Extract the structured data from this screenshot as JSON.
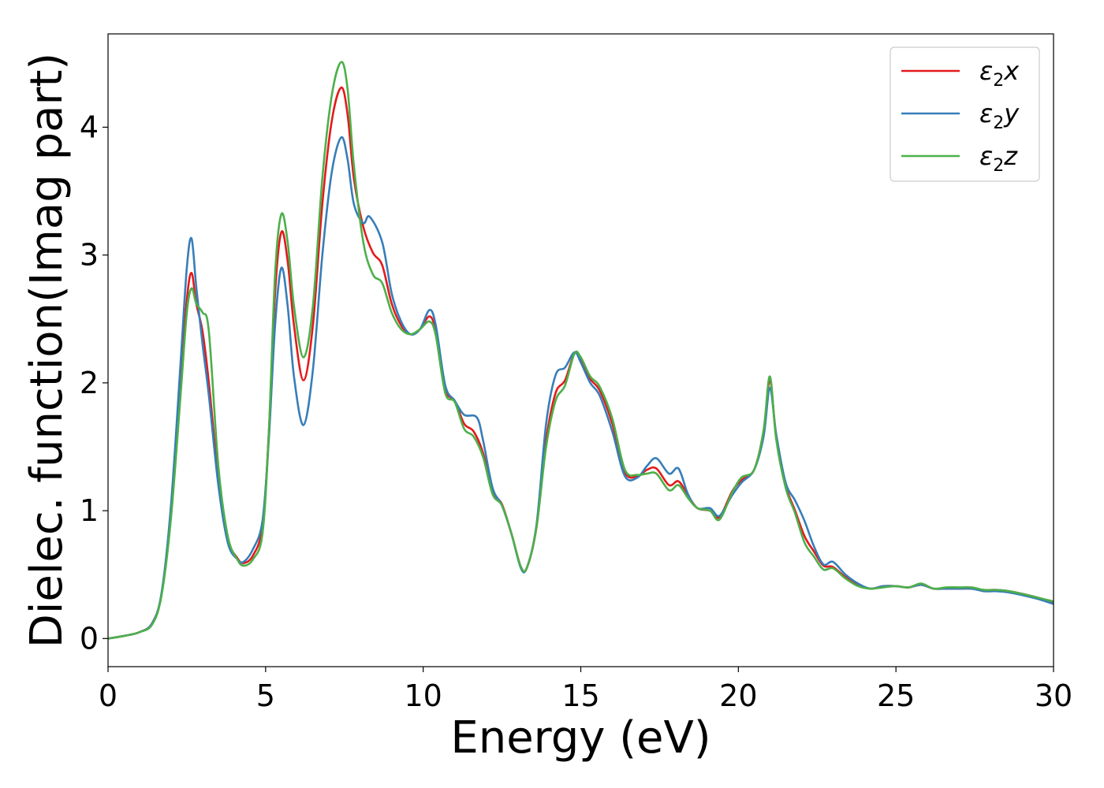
{
  "chart_data": {
    "type": "line",
    "xlabel": "Energy (eV)",
    "ylabel": "Dielec. function(Imag part)",
    "xlim": [
      0,
      30
    ],
    "ylim": [
      -0.22,
      4.73
    ],
    "xticks": [
      0,
      5,
      10,
      15,
      20,
      25,
      30
    ],
    "yticks": [
      0,
      1,
      2,
      3,
      4
    ],
    "grid": false,
    "legend_position": "top-right",
    "series": [
      {
        "name": "ε₂x",
        "legend": {
          "base": "ε",
          "sub": "2",
          "suffix": "x"
        },
        "color": "#e41a1c",
        "points": [
          [
            0,
            0
          ],
          [
            0.5,
            0.02
          ],
          [
            1.0,
            0.05
          ],
          [
            1.4,
            0.12
          ],
          [
            1.7,
            0.35
          ],
          [
            2.0,
            1.0
          ],
          [
            2.3,
            2.0
          ],
          [
            2.5,
            2.65
          ],
          [
            2.65,
            2.86
          ],
          [
            2.8,
            2.62
          ],
          [
            3.0,
            2.4
          ],
          [
            3.2,
            2.0
          ],
          [
            3.5,
            1.25
          ],
          [
            3.8,
            0.78
          ],
          [
            4.1,
            0.63
          ],
          [
            4.3,
            0.59
          ],
          [
            4.6,
            0.65
          ],
          [
            4.9,
            0.88
          ],
          [
            5.1,
            1.6
          ],
          [
            5.3,
            2.7
          ],
          [
            5.5,
            3.18
          ],
          [
            5.7,
            2.95
          ],
          [
            5.9,
            2.45
          ],
          [
            6.2,
            2.02
          ],
          [
            6.5,
            2.45
          ],
          [
            6.8,
            3.4
          ],
          [
            7.1,
            4.05
          ],
          [
            7.4,
            4.31
          ],
          [
            7.6,
            4.1
          ],
          [
            7.8,
            3.6
          ],
          [
            8.1,
            3.22
          ],
          [
            8.4,
            3.02
          ],
          [
            8.7,
            2.92
          ],
          [
            9.0,
            2.62
          ],
          [
            9.3,
            2.45
          ],
          [
            9.6,
            2.38
          ],
          [
            9.9,
            2.42
          ],
          [
            10.2,
            2.52
          ],
          [
            10.4,
            2.4
          ],
          [
            10.7,
            1.95
          ],
          [
            11.0,
            1.86
          ],
          [
            11.3,
            1.68
          ],
          [
            11.6,
            1.62
          ],
          [
            11.9,
            1.45
          ],
          [
            12.2,
            1.15
          ],
          [
            12.5,
            1.05
          ],
          [
            12.8,
            0.82
          ],
          [
            13.1,
            0.56
          ],
          [
            13.3,
            0.56
          ],
          [
            13.6,
            0.88
          ],
          [
            13.9,
            1.55
          ],
          [
            14.2,
            1.92
          ],
          [
            14.5,
            2.02
          ],
          [
            14.8,
            2.23
          ],
          [
            15.0,
            2.18
          ],
          [
            15.3,
            2.03
          ],
          [
            15.6,
            1.94
          ],
          [
            16.0,
            1.68
          ],
          [
            16.4,
            1.3
          ],
          [
            16.8,
            1.27
          ],
          [
            17.1,
            1.32
          ],
          [
            17.4,
            1.33
          ],
          [
            17.8,
            1.2
          ],
          [
            18.1,
            1.23
          ],
          [
            18.4,
            1.12
          ],
          [
            18.7,
            1.02
          ],
          [
            19.1,
            1.0
          ],
          [
            19.4,
            0.95
          ],
          [
            19.8,
            1.15
          ],
          [
            20.1,
            1.24
          ],
          [
            20.5,
            1.32
          ],
          [
            20.8,
            1.62
          ],
          [
            21.0,
            2.02
          ],
          [
            21.2,
            1.58
          ],
          [
            21.5,
            1.2
          ],
          [
            21.8,
            1.0
          ],
          [
            22.1,
            0.8
          ],
          [
            22.4,
            0.68
          ],
          [
            22.7,
            0.57
          ],
          [
            23.0,
            0.56
          ],
          [
            23.4,
            0.48
          ],
          [
            23.8,
            0.42
          ],
          [
            24.2,
            0.39
          ],
          [
            24.6,
            0.41
          ],
          [
            25.0,
            0.41
          ],
          [
            25.4,
            0.4
          ],
          [
            25.8,
            0.42
          ],
          [
            26.2,
            0.39
          ],
          [
            26.6,
            0.39
          ],
          [
            27.0,
            0.39
          ],
          [
            27.4,
            0.39
          ],
          [
            27.8,
            0.38
          ],
          [
            28.2,
            0.38
          ],
          [
            28.6,
            0.37
          ],
          [
            29.0,
            0.35
          ],
          [
            29.5,
            0.32
          ],
          [
            30,
            0.28
          ]
        ]
      },
      {
        "name": "ε₂y",
        "legend": {
          "base": "ε",
          "sub": "2",
          "suffix": "y"
        },
        "color": "#377eb8",
        "points": [
          [
            0,
            0
          ],
          [
            0.5,
            0.02
          ],
          [
            1.0,
            0.05
          ],
          [
            1.4,
            0.12
          ],
          [
            1.7,
            0.36
          ],
          [
            2.0,
            1.05
          ],
          [
            2.3,
            2.15
          ],
          [
            2.5,
            2.9
          ],
          [
            2.65,
            3.13
          ],
          [
            2.8,
            2.75
          ],
          [
            3.0,
            2.3
          ],
          [
            3.2,
            1.9
          ],
          [
            3.5,
            1.2
          ],
          [
            3.8,
            0.75
          ],
          [
            4.1,
            0.62
          ],
          [
            4.3,
            0.6
          ],
          [
            4.6,
            0.7
          ],
          [
            4.9,
            0.92
          ],
          [
            5.1,
            1.55
          ],
          [
            5.3,
            2.45
          ],
          [
            5.5,
            2.9
          ],
          [
            5.7,
            2.6
          ],
          [
            5.9,
            2.05
          ],
          [
            6.2,
            1.67
          ],
          [
            6.5,
            2.1
          ],
          [
            6.8,
            3.0
          ],
          [
            7.1,
            3.65
          ],
          [
            7.4,
            3.92
          ],
          [
            7.6,
            3.75
          ],
          [
            7.8,
            3.4
          ],
          [
            8.1,
            3.25
          ],
          [
            8.3,
            3.3
          ],
          [
            8.7,
            3.1
          ],
          [
            9.0,
            2.7
          ],
          [
            9.3,
            2.48
          ],
          [
            9.6,
            2.38
          ],
          [
            9.9,
            2.42
          ],
          [
            10.2,
            2.57
          ],
          [
            10.4,
            2.45
          ],
          [
            10.7,
            1.98
          ],
          [
            11.0,
            1.86
          ],
          [
            11.3,
            1.75
          ],
          [
            11.7,
            1.73
          ],
          [
            11.9,
            1.55
          ],
          [
            12.2,
            1.18
          ],
          [
            12.5,
            1.04
          ],
          [
            12.8,
            0.82
          ],
          [
            13.1,
            0.55
          ],
          [
            13.3,
            0.56
          ],
          [
            13.6,
            0.9
          ],
          [
            13.9,
            1.68
          ],
          [
            14.2,
            2.06
          ],
          [
            14.5,
            2.12
          ],
          [
            14.8,
            2.24
          ],
          [
            15.0,
            2.16
          ],
          [
            15.3,
            2.0
          ],
          [
            15.6,
            1.9
          ],
          [
            16.0,
            1.62
          ],
          [
            16.4,
            1.27
          ],
          [
            16.8,
            1.26
          ],
          [
            17.1,
            1.35
          ],
          [
            17.4,
            1.41
          ],
          [
            17.8,
            1.29
          ],
          [
            18.1,
            1.33
          ],
          [
            18.4,
            1.13
          ],
          [
            18.7,
            1.02
          ],
          [
            19.1,
            1.02
          ],
          [
            19.4,
            0.96
          ],
          [
            19.8,
            1.12
          ],
          [
            20.1,
            1.22
          ],
          [
            20.5,
            1.32
          ],
          [
            20.8,
            1.58
          ],
          [
            21.0,
            1.96
          ],
          [
            21.2,
            1.6
          ],
          [
            21.5,
            1.22
          ],
          [
            21.8,
            1.08
          ],
          [
            22.1,
            0.92
          ],
          [
            22.4,
            0.72
          ],
          [
            22.7,
            0.58
          ],
          [
            23.0,
            0.6
          ],
          [
            23.4,
            0.5
          ],
          [
            23.8,
            0.43
          ],
          [
            24.2,
            0.39
          ],
          [
            24.6,
            0.41
          ],
          [
            25.0,
            0.41
          ],
          [
            25.4,
            0.4
          ],
          [
            25.8,
            0.42
          ],
          [
            26.2,
            0.39
          ],
          [
            26.6,
            0.39
          ],
          [
            27.0,
            0.39
          ],
          [
            27.4,
            0.39
          ],
          [
            27.8,
            0.37
          ],
          [
            28.2,
            0.37
          ],
          [
            28.6,
            0.36
          ],
          [
            29.0,
            0.34
          ],
          [
            29.5,
            0.31
          ],
          [
            30,
            0.27
          ]
        ]
      },
      {
        "name": "ε₂z",
        "legend": {
          "base": "ε",
          "sub": "2",
          "suffix": "z"
        },
        "color": "#4daf4a",
        "points": [
          [
            0,
            0
          ],
          [
            0.5,
            0.02
          ],
          [
            1.0,
            0.05
          ],
          [
            1.4,
            0.11
          ],
          [
            1.7,
            0.34
          ],
          [
            2.0,
            0.95
          ],
          [
            2.3,
            1.9
          ],
          [
            2.5,
            2.55
          ],
          [
            2.65,
            2.74
          ],
          [
            2.8,
            2.62
          ],
          [
            3.0,
            2.55
          ],
          [
            3.2,
            2.4
          ],
          [
            3.5,
            1.35
          ],
          [
            3.8,
            0.8
          ],
          [
            4.1,
            0.62
          ],
          [
            4.3,
            0.57
          ],
          [
            4.6,
            0.62
          ],
          [
            4.9,
            0.82
          ],
          [
            5.1,
            1.6
          ],
          [
            5.3,
            2.85
          ],
          [
            5.5,
            3.32
          ],
          [
            5.7,
            3.1
          ],
          [
            5.9,
            2.6
          ],
          [
            6.2,
            2.2
          ],
          [
            6.5,
            2.6
          ],
          [
            6.8,
            3.6
          ],
          [
            7.1,
            4.25
          ],
          [
            7.4,
            4.51
          ],
          [
            7.6,
            4.3
          ],
          [
            7.8,
            3.7
          ],
          [
            8.1,
            3.1
          ],
          [
            8.4,
            2.85
          ],
          [
            8.7,
            2.78
          ],
          [
            9.0,
            2.55
          ],
          [
            9.3,
            2.42
          ],
          [
            9.6,
            2.38
          ],
          [
            9.9,
            2.42
          ],
          [
            10.2,
            2.48
          ],
          [
            10.4,
            2.37
          ],
          [
            10.7,
            1.92
          ],
          [
            11.0,
            1.85
          ],
          [
            11.3,
            1.64
          ],
          [
            11.6,
            1.58
          ],
          [
            11.9,
            1.42
          ],
          [
            12.2,
            1.13
          ],
          [
            12.5,
            1.04
          ],
          [
            12.8,
            0.82
          ],
          [
            13.1,
            0.56
          ],
          [
            13.3,
            0.56
          ],
          [
            13.6,
            0.88
          ],
          [
            13.9,
            1.5
          ],
          [
            14.2,
            1.86
          ],
          [
            14.5,
            1.98
          ],
          [
            14.8,
            2.23
          ],
          [
            15.0,
            2.2
          ],
          [
            15.3,
            2.05
          ],
          [
            15.6,
            1.97
          ],
          [
            16.0,
            1.72
          ],
          [
            16.4,
            1.32
          ],
          [
            16.8,
            1.28
          ],
          [
            17.1,
            1.29
          ],
          [
            17.4,
            1.29
          ],
          [
            17.8,
            1.16
          ],
          [
            18.1,
            1.2
          ],
          [
            18.4,
            1.1
          ],
          [
            18.7,
            1.02
          ],
          [
            19.1,
            1.0
          ],
          [
            19.4,
            0.93
          ],
          [
            19.8,
            1.14
          ],
          [
            20.1,
            1.26
          ],
          [
            20.5,
            1.32
          ],
          [
            20.8,
            1.63
          ],
          [
            21.0,
            2.05
          ],
          [
            21.2,
            1.56
          ],
          [
            21.5,
            1.18
          ],
          [
            21.8,
            0.98
          ],
          [
            22.1,
            0.75
          ],
          [
            22.4,
            0.64
          ],
          [
            22.7,
            0.54
          ],
          [
            23.0,
            0.55
          ],
          [
            23.4,
            0.47
          ],
          [
            23.8,
            0.41
          ],
          [
            24.2,
            0.39
          ],
          [
            24.6,
            0.4
          ],
          [
            25.0,
            0.41
          ],
          [
            25.4,
            0.4
          ],
          [
            25.8,
            0.43
          ],
          [
            26.2,
            0.39
          ],
          [
            26.6,
            0.4
          ],
          [
            27.0,
            0.4
          ],
          [
            27.4,
            0.4
          ],
          [
            27.8,
            0.38
          ],
          [
            28.2,
            0.38
          ],
          [
            28.6,
            0.37
          ],
          [
            29.0,
            0.35
          ],
          [
            29.5,
            0.32
          ],
          [
            30,
            0.29
          ]
        ]
      }
    ]
  }
}
